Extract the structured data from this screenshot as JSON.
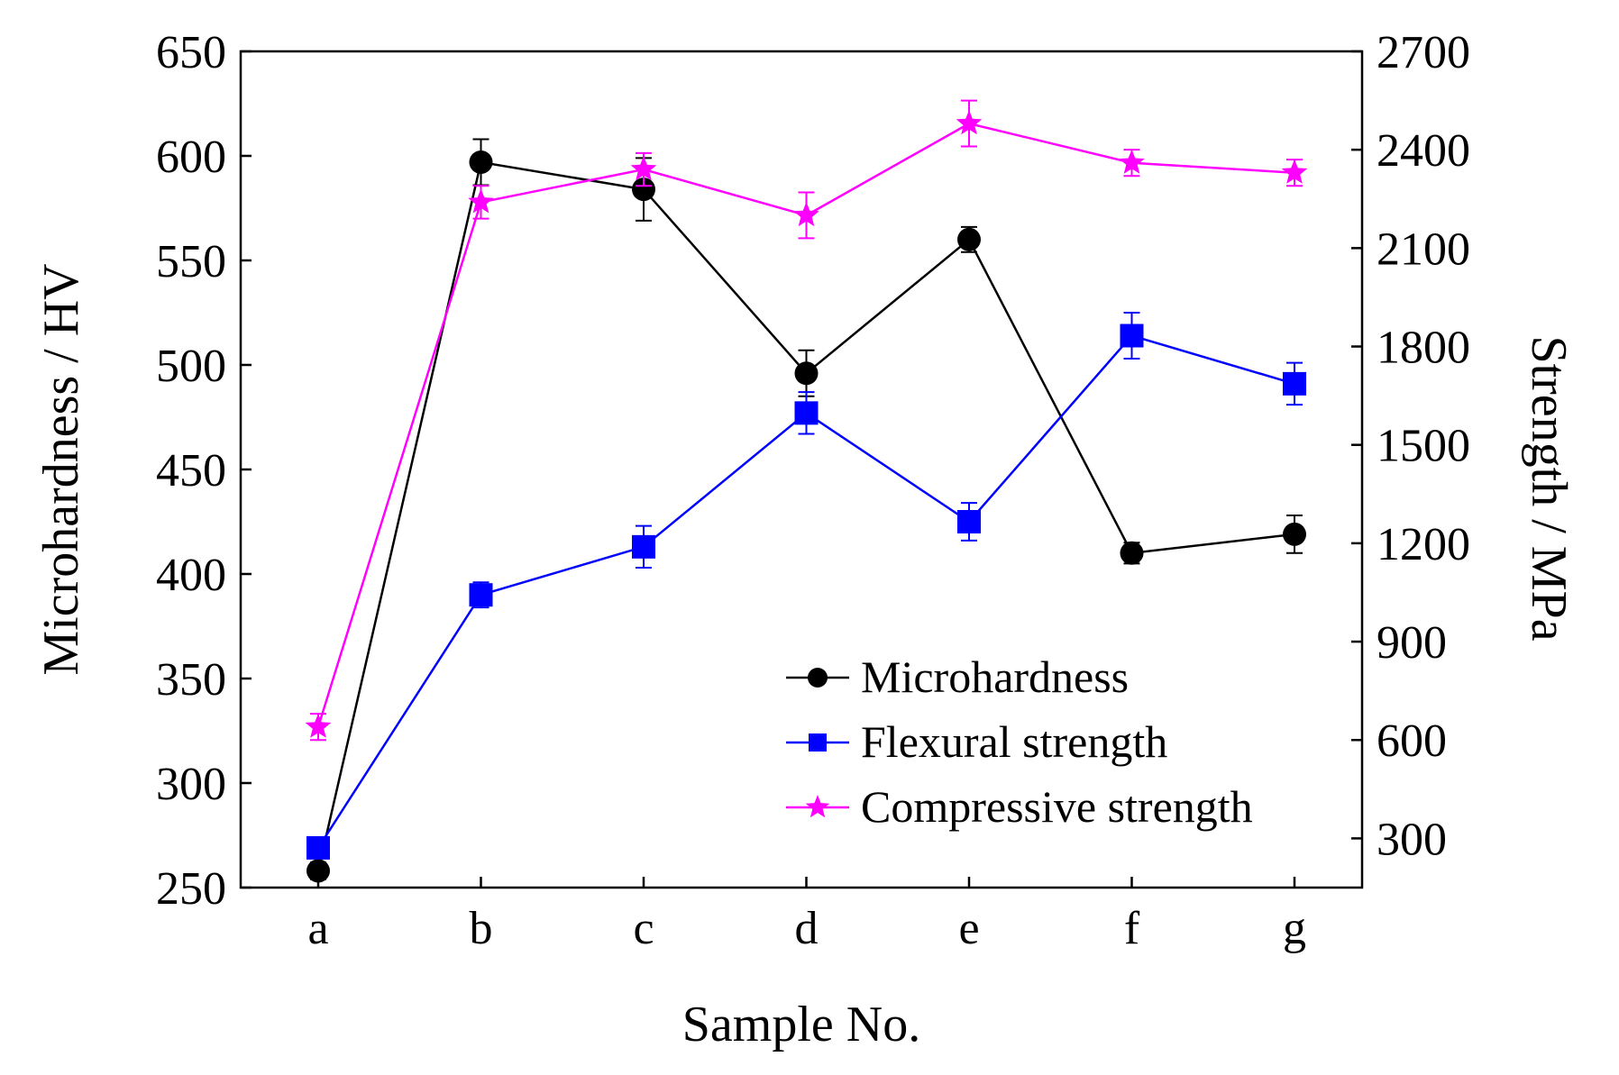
{
  "chart_data": {
    "type": "line",
    "title": "",
    "xlabel": "Sample No.",
    "ylabel_left": "Microhardness / HV",
    "ylabel_right": "Strength / MPa",
    "categories": [
      "a",
      "b",
      "c",
      "d",
      "e",
      "f",
      "g"
    ],
    "y_left": {
      "min": 250,
      "max": 650,
      "ticks": [
        250,
        300,
        350,
        400,
        450,
        500,
        550,
        600,
        650
      ]
    },
    "y_right": {
      "min": 150,
      "max": 2700,
      "ticks": [
        300,
        600,
        900,
        1200,
        1500,
        1800,
        2100,
        2400,
        2700
      ]
    },
    "legend_position": "lower-right",
    "grid": false,
    "series": [
      {
        "name": "Microhardness",
        "axis": "left",
        "color": "#000000",
        "marker": "circle",
        "values": [
          258,
          597,
          584,
          496,
          560,
          410,
          419
        ],
        "errors": [
          4,
          11,
          15,
          11,
          6,
          5,
          9
        ]
      },
      {
        "name": "Flexural strength",
        "axis": "left",
        "color": "#0000ff",
        "marker": "square",
        "values": [
          269,
          390,
          413,
          477,
          425,
          514,
          491
        ],
        "errors": [
          5,
          6,
          10,
          10,
          9,
          11,
          10
        ]
      },
      {
        "name": "Compressive strength",
        "axis": "right",
        "color": "#ff00ff",
        "marker": "star",
        "values": [
          640,
          2240,
          2340,
          2200,
          2480,
          2360,
          2330
        ],
        "errors": [
          40,
          50,
          50,
          70,
          70,
          40,
          40
        ]
      }
    ]
  }
}
